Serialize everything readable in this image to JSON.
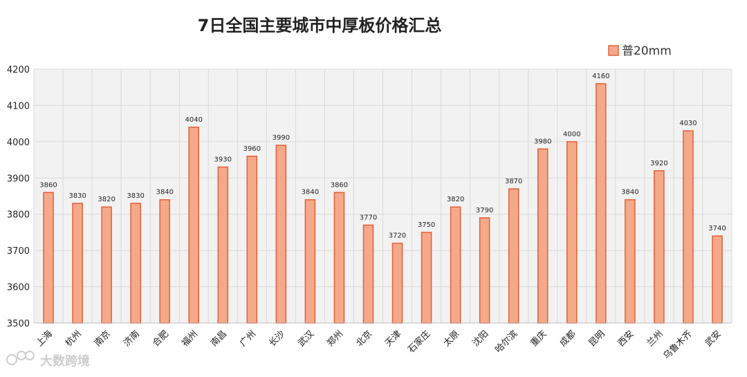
{
  "chart_data": {
    "type": "bar",
    "title": "7日全国主要城市中厚板价格汇总",
    "categories": [
      "上海",
      "杭州",
      "南京",
      "济南",
      "合肥",
      "福州",
      "南昌",
      "广州",
      "长沙",
      "武汉",
      "郑州",
      "北京",
      "天津",
      "石家庄",
      "太原",
      "沈阳",
      "哈尔滨",
      "重庆",
      "成都",
      "昆明",
      "西安",
      "兰州",
      "乌鲁木齐",
      "武安"
    ],
    "series": [
      {
        "name": "普20mm",
        "values": [
          3860,
          3830,
          3820,
          3830,
          3840,
          4040,
          3930,
          3960,
          3990,
          3840,
          3860,
          3770,
          3720,
          3750,
          3820,
          3790,
          3870,
          3980,
          4000,
          4160,
          3840,
          3920,
          4030,
          3740
        ]
      }
    ],
    "ylim": [
      3500,
      4200
    ],
    "yticks": [
      3500,
      3600,
      3700,
      3800,
      3900,
      4000,
      4100,
      4200
    ],
    "xlabel": "",
    "ylabel": "",
    "grid": true,
    "legend_position": "top-right",
    "data_labels": true
  },
  "colors": {
    "bar_fill": "#f5a98b",
    "bar_stroke": "#e2653a",
    "plot_background": "#f2f2f2",
    "grid": "#d9d9d9"
  },
  "watermark": {
    "text": "大数跨境",
    "icon": "logo-icon"
  }
}
